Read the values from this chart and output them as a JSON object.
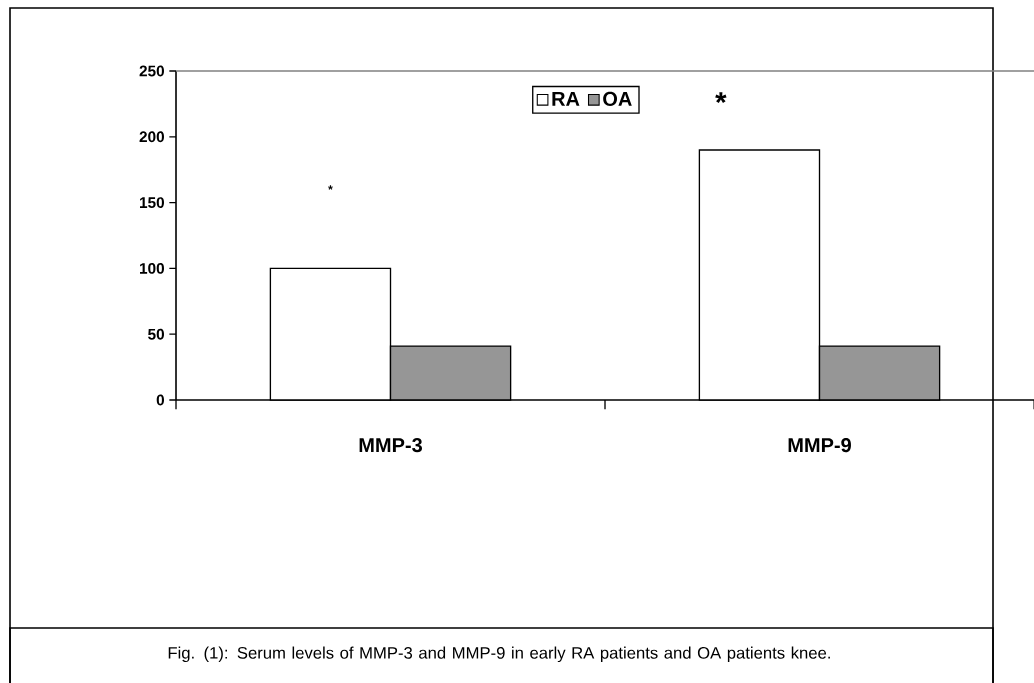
{
  "chart_data": {
    "type": "bar",
    "categories": [
      "MMP-3",
      "MMP-9"
    ],
    "series": [
      {
        "name": "RA",
        "color": "#ffffff",
        "values": [
          100,
          190
        ]
      },
      {
        "name": "OA",
        "color": "#969696",
        "values": [
          41,
          41
        ]
      }
    ],
    "ylim": [
      0,
      250
    ],
    "yticks": [
      0,
      50,
      100,
      150,
      200,
      250
    ],
    "grid": false,
    "legend": "top",
    "annotations": [
      "*",
      "*",
      "Fig. (1): Serum  levels of MMP-3 and MMP-9 in early RA patients and OA patients knee."
    ]
  }
}
